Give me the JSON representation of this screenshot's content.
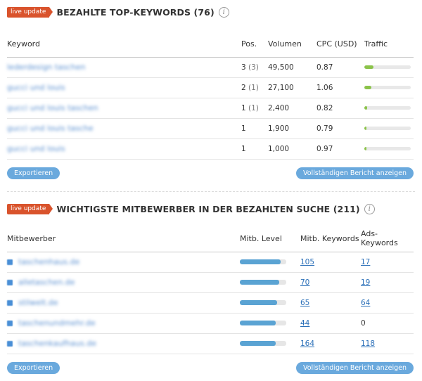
{
  "keywords_section": {
    "badge": "live update",
    "title": "BEZAHLTE TOP-KEYWORDS (76)",
    "info": "i",
    "columns": [
      "Keyword",
      "Pos.",
      "Volumen",
      "CPC (USD)",
      "Traffic"
    ],
    "rows": [
      {
        "keyword": "lederdesign taschen",
        "pos": "3",
        "pos_prev": "(3)",
        "volume": "49,500",
        "cpc": "0.87",
        "traffic": 0.2
      },
      {
        "keyword": "gucci und louis",
        "pos": "2",
        "pos_prev": "(1)",
        "volume": "27,100",
        "cpc": "1.06",
        "traffic": 0.15
      },
      {
        "keyword": "gucci und louis taschen",
        "pos": "1",
        "pos_prev": "(1)",
        "volume": "2,400",
        "cpc": "0.82",
        "traffic": 0.06
      },
      {
        "keyword": "gucci und louis tasche",
        "pos": "1",
        "pos_prev": "",
        "volume": "1,900",
        "cpc": "0.79",
        "traffic": 0.05
      },
      {
        "keyword": "gucci und louis",
        "pos": "1",
        "pos_prev": "",
        "volume": "1,000",
        "cpc": "0.97",
        "traffic": 0.04
      }
    ],
    "export_label": "Exportieren",
    "report_label": "Vollständigen Bericht anzeigen"
  },
  "competitors_section": {
    "badge": "live update",
    "title": "WICHTIGSTE MITBEWERBER IN DER BEZAHLTEN SUCHE (211)",
    "info": "i",
    "columns": [
      "Mitbewerber",
      "Mitb. Level",
      "Mitb. Keywords",
      "Ads-Keywords"
    ],
    "rows": [
      {
        "domain": "taschenhaus.de",
        "level": 0.88,
        "keywords": "105",
        "ads": "17",
        "ads_link": true
      },
      {
        "domain": "alletaschen.de",
        "level": 0.85,
        "keywords": "70",
        "ads": "19",
        "ads_link": true
      },
      {
        "domain": "stilwelt.de",
        "level": 0.8,
        "keywords": "65",
        "ads": "64",
        "ads_link": true
      },
      {
        "domain": "taschenundmehr.de",
        "level": 0.78,
        "keywords": "44",
        "ads": "0",
        "ads_link": false
      },
      {
        "domain": "taschenkaufhaus.de",
        "level": 0.78,
        "keywords": "164",
        "ads": "118",
        "ads_link": true
      }
    ],
    "export_label": "Exportieren",
    "report_label": "Vollständigen Bericht anzeigen"
  },
  "colors": {
    "badge": "#d9532c",
    "traffic": "#8bc34a",
    "level": "#5aa3d3",
    "button": "#6aa9dd",
    "link": "#2a6fb8"
  }
}
